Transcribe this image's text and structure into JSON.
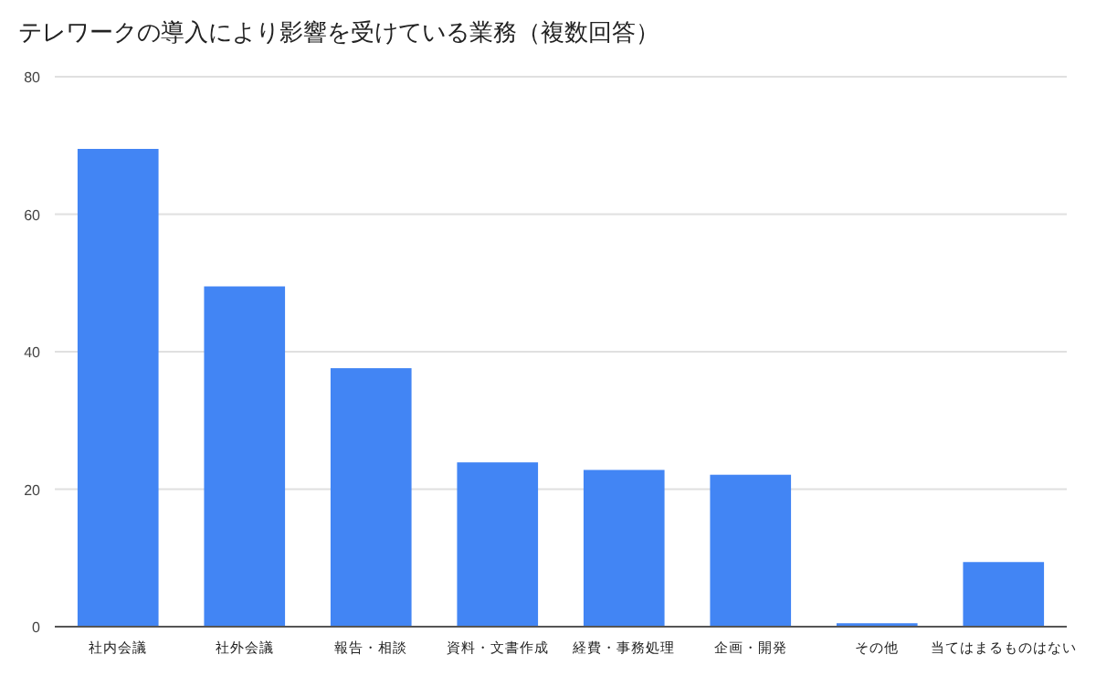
{
  "chart_data": {
    "type": "bar",
    "title": "テレワークの導入により影響を受けている業務（複数回答）",
    "categories": [
      "社内会議",
      "社外会議",
      "報告・相談",
      "資料・文書作成",
      "経費・事務処理",
      "企画・開発",
      "その他",
      "当てはまるものはない"
    ],
    "values": [
      69.5,
      49.5,
      37.6,
      23.9,
      22.8,
      22.1,
      0.5,
      9.4
    ],
    "color": "#4285f4",
    "ylim": [
      0,
      80
    ],
    "yticks": [
      0,
      20,
      40,
      60,
      80
    ],
    "grid": "y"
  }
}
